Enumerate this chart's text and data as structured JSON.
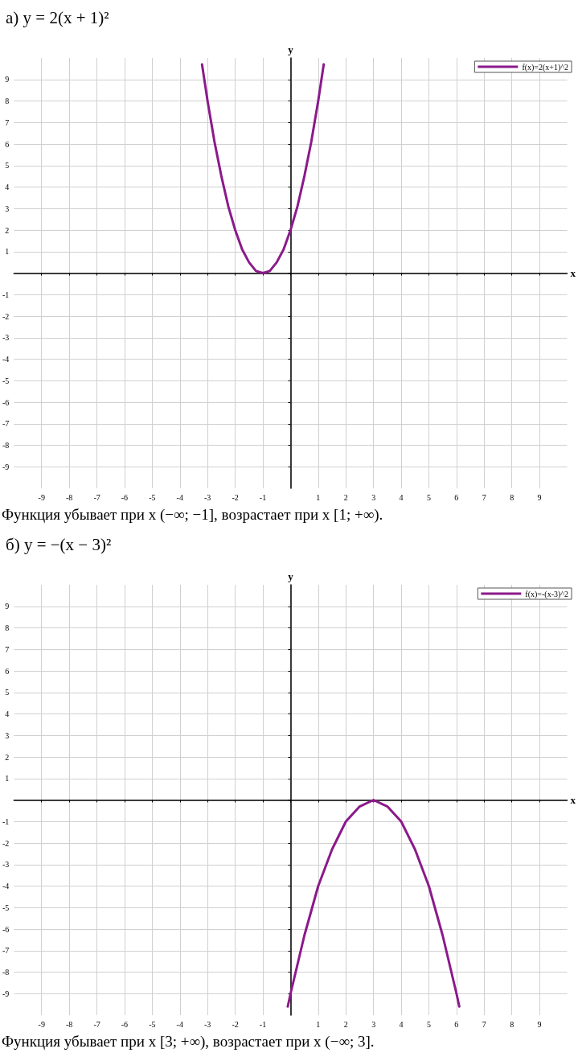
{
  "chart_data": [
    {
      "type": "line",
      "title": "а) y = 2(x + 1)²",
      "xlabel": "x",
      "ylabel": "y",
      "xlim": [
        -10,
        10
      ],
      "ylim": [
        -10,
        10
      ],
      "xticks": [
        -9,
        -8,
        -7,
        -6,
        -5,
        -4,
        -3,
        -2,
        -1,
        {
          "value": 0,
          "label": null
        },
        1,
        2,
        3,
        4,
        5,
        6,
        7,
        8,
        9
      ],
      "yticks": [
        -9,
        -8,
        -7,
        -6,
        -5,
        -4,
        -3,
        -2,
        -1,
        {
          "value": 0,
          "label": null
        },
        1,
        2,
        3,
        4,
        5,
        6,
        7,
        8,
        9
      ],
      "grid": true,
      "legend": "top right",
      "marker": "none",
      "line_style": "solid",
      "series": [
        {
          "name": "f(x)=2(x+1)^2",
          "color": "#8b1a8b",
          "x": [
            -3.2,
            -3,
            -2.75,
            -2.5,
            -2.25,
            -2,
            -1.75,
            -1.5,
            -1.25,
            -1,
            -0.75,
            -0.5,
            -0.25,
            0,
            0.25,
            0.5,
            0.75,
            1,
            1.2
          ],
          "values": [
            9.7,
            8,
            6.1,
            4.5,
            3.1,
            2,
            1.1,
            0.5,
            0.1,
            0,
            0.1,
            0.5,
            1.1,
            2,
            3.1,
            4.5,
            6.1,
            8,
            9.7
          ]
        }
      ],
      "annotations": [
        "Функция убывает при x (−∞; −1], возрастает при x [1; +∞)."
      ]
    },
    {
      "type": "line",
      "title": "б) y = −(x − 3)²",
      "xlabel": "x",
      "ylabel": "y",
      "xlim": [
        -10,
        10
      ],
      "ylim": [
        -10,
        10
      ],
      "xticks": [
        -9,
        -8,
        -7,
        -6,
        -5,
        -4,
        -3,
        -2,
        -1,
        {
          "value": 0,
          "label": null
        },
        1,
        2,
        3,
        4,
        5,
        6,
        7,
        8,
        9
      ],
      "yticks": [
        -9,
        -8,
        -7,
        -6,
        -5,
        -4,
        -3,
        -2,
        -1,
        {
          "value": 0,
          "label": null
        },
        1,
        2,
        3,
        4,
        5,
        6,
        7,
        8,
        9
      ],
      "grid": true,
      "legend": "top right",
      "marker": "none",
      "line_style": "solid",
      "series": [
        {
          "name": "f(x)=-(x-3)^2",
          "color": "#8b1a8b",
          "x": [
            -0.1,
            0,
            0.5,
            1,
            1.5,
            2,
            2.5,
            3,
            3.5,
            4,
            4.5,
            5,
            5.5,
            6,
            6.1
          ],
          "values": [
            -9.6,
            -9,
            -6.3,
            -4,
            -2.3,
            -1,
            -0.3,
            0,
            -0.3,
            -1,
            -2.3,
            -4,
            -6.3,
            -9,
            -9.6
          ]
        }
      ],
      "annotations": [
        "Функция убывает при x [3; +∞), возрастает при x (−∞; 3]."
      ]
    }
  ]
}
